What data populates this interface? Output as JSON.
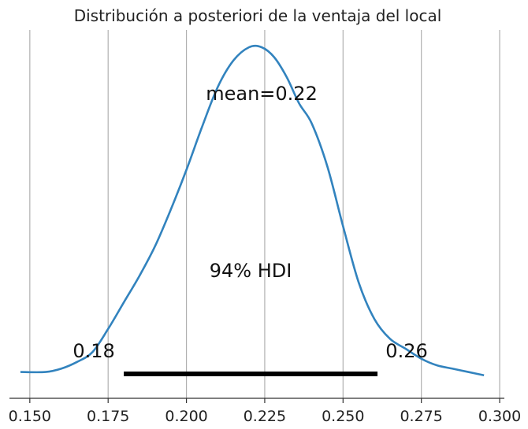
{
  "chart_data": {
    "type": "line",
    "title": "Distribución a posteriori de la ventaja del local",
    "xlabel": "",
    "ylabel": "",
    "xlim": [
      0.1435,
      0.3015
    ],
    "ylim": [
      0,
      1.0
    ],
    "grid": "x",
    "xticks": [
      0.15,
      0.175,
      0.2,
      0.225,
      0.25,
      0.275,
      0.3
    ],
    "xtick_labels": [
      "0.150",
      "0.175",
      "0.200",
      "0.225",
      "0.250",
      "0.275",
      "0.300"
    ],
    "series": [
      {
        "color": "#3283be",
        "x": [
          0.147,
          0.155,
          0.16,
          0.165,
          0.17,
          0.175,
          0.18,
          0.185,
          0.19,
          0.195,
          0.2,
          0.205,
          0.21,
          0.215,
          0.22,
          0.224,
          0.228,
          0.232,
          0.236,
          0.24,
          0.245,
          0.25,
          0.255,
          0.26,
          0.265,
          0.27,
          0.275,
          0.28,
          0.285,
          0.29,
          0.295
        ],
        "y": [
          0.02,
          0.02,
          0.03,
          0.05,
          0.08,
          0.15,
          0.23,
          0.31,
          0.4,
          0.51,
          0.63,
          0.76,
          0.88,
          0.96,
          1.0,
          1.0,
          0.97,
          0.91,
          0.83,
          0.77,
          0.64,
          0.46,
          0.29,
          0.18,
          0.12,
          0.09,
          0.06,
          0.04,
          0.03,
          0.02,
          0.01
        ]
      }
    ],
    "hdi": {
      "low": 0.18,
      "high": 0.261,
      "low_label": "0.18",
      "high_label": "0.26",
      "label": "94% HDI"
    },
    "mean_label": "mean=0.22"
  }
}
